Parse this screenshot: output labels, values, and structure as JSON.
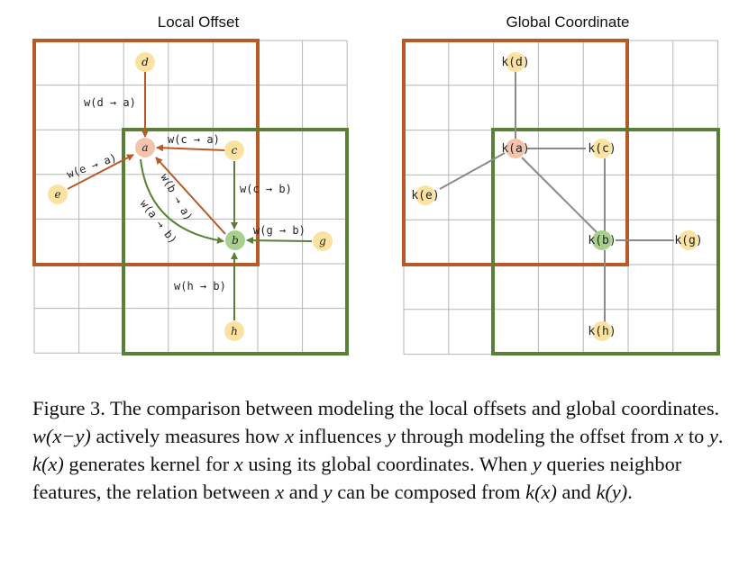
{
  "left_panel": {
    "title": "Local Offset",
    "nodes": {
      "a": "a",
      "b": "b",
      "c": "c",
      "d": "d",
      "e": "e",
      "g": "g",
      "h": "h"
    },
    "edges": {
      "d_a": "w(d → a)",
      "e_a": "w(e → a)",
      "c_a": "w(c → a)",
      "c_b": "w(c → b)",
      "g_b": "w(g → b)",
      "h_b": "w(h → b)",
      "b_a": "w(b → a)",
      "a_b": "w(a → b)"
    }
  },
  "right_panel": {
    "title": "Global Coordinate",
    "nodes": {
      "a": "k(a)",
      "b": "k(b)",
      "c": "k(c)",
      "d": "k(d)",
      "e": "k(e)",
      "g": "k(g)",
      "h": "k(h)"
    }
  },
  "colors": {
    "orange_box": "#b85a25",
    "green_box": "#5a7f36",
    "node_yellow": "#fbe2a0",
    "node_pink": "#f3c3ab",
    "node_green": "#a8d08d"
  },
  "caption": {
    "fig": "Figure 3.",
    "t1": " The comparison between modeling the local offsets and global coordinates. ",
    "m1": "w(x−y)",
    "t2": " actively measures how ",
    "m2": "x",
    "t3": " influences ",
    "m3": "y",
    "t4": " through modeling the offset from ",
    "m4": "x",
    "t5": " to ",
    "m5": "y",
    "t6": ". ",
    "m6": "k(x)",
    "t7": " generates kernel for ",
    "m7": "x",
    "t8": " using its global coordinates. When ",
    "m8": "y",
    "t9": " queries neighbor features, the relation between ",
    "m9": "x",
    "t10": " and ",
    "m10": "y",
    "t11": " can be composed from ",
    "m11": "k(x)",
    "t12": " and ",
    "m12": "k(y)",
    "t13": "."
  }
}
